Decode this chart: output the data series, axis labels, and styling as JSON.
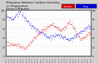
{
  "title": "Milwaukee Weather Outdoor Humidity",
  "title2": "vs Temperature",
  "title3": "Every 5 Minutes",
  "title_fontsize": 3.0,
  "bg_color": "#d0d0d0",
  "plot_bg_color": "#ffffff",
  "blue_color": "#0000dd",
  "red_color": "#dd0000",
  "legend_red_label": "Humidity",
  "legend_blue_label": "Temp",
  "dot_size": 0.8,
  "ylim_left": [
    0,
    100
  ],
  "ylim_right": [
    0,
    100
  ],
  "seed": 99
}
